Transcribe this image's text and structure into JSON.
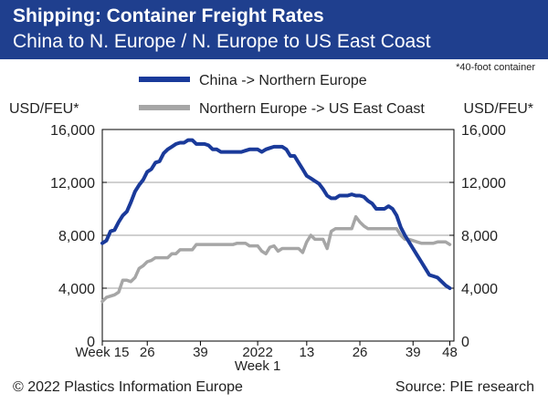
{
  "header": {
    "title": "Shipping: Container Freight Rates",
    "subtitle": "China to N. Europe / N. Europe to US East Coast"
  },
  "note": "*40-foot container",
  "footer": {
    "left": "© 2022 Plastics Information Europe",
    "right": "Source: PIE research"
  },
  "colors": {
    "header_bg": "#1f3f8e",
    "series_china": "#1a3a9a",
    "series_europe": "#a6a6a6",
    "grid": "#a0a0a0"
  },
  "chart_data": {
    "type": "line",
    "ylabel_left": "USD/FEU*",
    "ylabel_right": "USD/FEU*",
    "ylim": [
      0,
      16000
    ],
    "yticks": [
      0,
      4000,
      8000,
      12000,
      16000
    ],
    "ytick_labels": [
      "0",
      "4,000",
      "8,000",
      "12,000",
      "16,000"
    ],
    "x_ticks": [
      {
        "label": "Week 15",
        "week": 0
      },
      {
        "label": "26",
        "week": 11
      },
      {
        "label": "39",
        "week": 24
      },
      {
        "label": "2022",
        "sublabel": "Week 1",
        "week": 38
      },
      {
        "label": "13",
        "week": 50
      },
      {
        "label": "26",
        "week": 63
      },
      {
        "label": "39",
        "week": 76
      },
      {
        "label": "48",
        "week": 85
      }
    ],
    "xlim": [
      0,
      86
    ],
    "grid": true,
    "legend_position": "top",
    "series": [
      {
        "name": "China -> Northern Europe",
        "color": "#1a3a9a",
        "points": [
          [
            0,
            7400
          ],
          [
            1,
            7600
          ],
          [
            2,
            8300
          ],
          [
            3,
            8400
          ],
          [
            4,
            9000
          ],
          [
            5,
            9500
          ],
          [
            6,
            9800
          ],
          [
            7,
            10500
          ],
          [
            8,
            11300
          ],
          [
            9,
            11800
          ],
          [
            10,
            12200
          ],
          [
            11,
            12800
          ],
          [
            12,
            13000
          ],
          [
            13,
            13500
          ],
          [
            14,
            13600
          ],
          [
            15,
            14200
          ],
          [
            16,
            14500
          ],
          [
            17,
            14700
          ],
          [
            18,
            14900
          ],
          [
            19,
            15000
          ],
          [
            20,
            15000
          ],
          [
            21,
            15200
          ],
          [
            22,
            15200
          ],
          [
            23,
            14900
          ],
          [
            24,
            14900
          ],
          [
            25,
            14900
          ],
          [
            26,
            14800
          ],
          [
            27,
            14500
          ],
          [
            28,
            14500
          ],
          [
            29,
            14300
          ],
          [
            30,
            14300
          ],
          [
            31,
            14300
          ],
          [
            32,
            14300
          ],
          [
            33,
            14300
          ],
          [
            34,
            14300
          ],
          [
            35,
            14400
          ],
          [
            36,
            14500
          ],
          [
            37,
            14500
          ],
          [
            38,
            14500
          ],
          [
            39,
            14300
          ],
          [
            40,
            14500
          ],
          [
            41,
            14600
          ],
          [
            42,
            14700
          ],
          [
            43,
            14700
          ],
          [
            44,
            14700
          ],
          [
            45,
            14500
          ],
          [
            46,
            14000
          ],
          [
            47,
            14000
          ],
          [
            48,
            13500
          ],
          [
            49,
            13000
          ],
          [
            50,
            12500
          ],
          [
            51,
            12300
          ],
          [
            52,
            12100
          ],
          [
            53,
            11900
          ],
          [
            54,
            11500
          ],
          [
            55,
            11000
          ],
          [
            56,
            10800
          ],
          [
            57,
            10800
          ],
          [
            58,
            11000
          ],
          [
            59,
            11000
          ],
          [
            60,
            11000
          ],
          [
            61,
            11100
          ],
          [
            62,
            11000
          ],
          [
            63,
            11000
          ],
          [
            64,
            10900
          ],
          [
            65,
            10600
          ],
          [
            66,
            10400
          ],
          [
            67,
            10000
          ],
          [
            68,
            10000
          ],
          [
            69,
            10000
          ],
          [
            70,
            10200
          ],
          [
            71,
            10000
          ],
          [
            72,
            9500
          ],
          [
            73,
            8600
          ],
          [
            74,
            8000
          ],
          [
            75,
            7500
          ],
          [
            76,
            7000
          ],
          [
            77,
            6500
          ],
          [
            78,
            6000
          ],
          [
            79,
            5500
          ],
          [
            80,
            5000
          ],
          [
            81,
            4900
          ],
          [
            82,
            4800
          ],
          [
            83,
            4500
          ],
          [
            84,
            4200
          ],
          [
            85,
            4000
          ]
        ]
      },
      {
        "name": "Northern Europe -> US East Coast",
        "color": "#a6a6a6",
        "points": [
          [
            0,
            3000
          ],
          [
            1,
            3300
          ],
          [
            2,
            3400
          ],
          [
            3,
            3500
          ],
          [
            4,
            3700
          ],
          [
            5,
            4600
          ],
          [
            6,
            4600
          ],
          [
            7,
            4500
          ],
          [
            8,
            4800
          ],
          [
            9,
            5500
          ],
          [
            10,
            5700
          ],
          [
            11,
            6000
          ],
          [
            12,
            6100
          ],
          [
            13,
            6300
          ],
          [
            14,
            6300
          ],
          [
            15,
            6300
          ],
          [
            16,
            6300
          ],
          [
            17,
            6600
          ],
          [
            18,
            6600
          ],
          [
            19,
            6900
          ],
          [
            20,
            6900
          ],
          [
            21,
            6900
          ],
          [
            22,
            6900
          ],
          [
            23,
            7300
          ],
          [
            24,
            7300
          ],
          [
            25,
            7300
          ],
          [
            26,
            7300
          ],
          [
            27,
            7300
          ],
          [
            28,
            7300
          ],
          [
            29,
            7300
          ],
          [
            30,
            7300
          ],
          [
            31,
            7300
          ],
          [
            32,
            7300
          ],
          [
            33,
            7400
          ],
          [
            34,
            7400
          ],
          [
            35,
            7400
          ],
          [
            36,
            7200
          ],
          [
            37,
            7200
          ],
          [
            38,
            7200
          ],
          [
            39,
            6800
          ],
          [
            40,
            6600
          ],
          [
            41,
            7100
          ],
          [
            42,
            7200
          ],
          [
            43,
            6800
          ],
          [
            44,
            7000
          ],
          [
            45,
            7000
          ],
          [
            46,
            7000
          ],
          [
            47,
            7000
          ],
          [
            48,
            7000
          ],
          [
            49,
            6700
          ],
          [
            50,
            7500
          ],
          [
            51,
            8000
          ],
          [
            52,
            7700
          ],
          [
            53,
            7700
          ],
          [
            54,
            7700
          ],
          [
            55,
            7000
          ],
          [
            56,
            8300
          ],
          [
            57,
            8500
          ],
          [
            58,
            8500
          ],
          [
            59,
            8500
          ],
          [
            60,
            8500
          ],
          [
            61,
            8500
          ],
          [
            62,
            9400
          ],
          [
            63,
            9000
          ],
          [
            64,
            8700
          ],
          [
            65,
            8500
          ],
          [
            66,
            8500
          ],
          [
            67,
            8500
          ],
          [
            68,
            8500
          ],
          [
            69,
            8500
          ],
          [
            70,
            8500
          ],
          [
            71,
            8500
          ],
          [
            72,
            8500
          ],
          [
            73,
            8000
          ],
          [
            74,
            7700
          ],
          [
            75,
            7700
          ],
          [
            76,
            7600
          ],
          [
            77,
            7500
          ],
          [
            78,
            7400
          ],
          [
            79,
            7400
          ],
          [
            80,
            7400
          ],
          [
            81,
            7400
          ],
          [
            82,
            7500
          ],
          [
            83,
            7500
          ],
          [
            84,
            7500
          ],
          [
            85,
            7300
          ]
        ]
      }
    ]
  }
}
